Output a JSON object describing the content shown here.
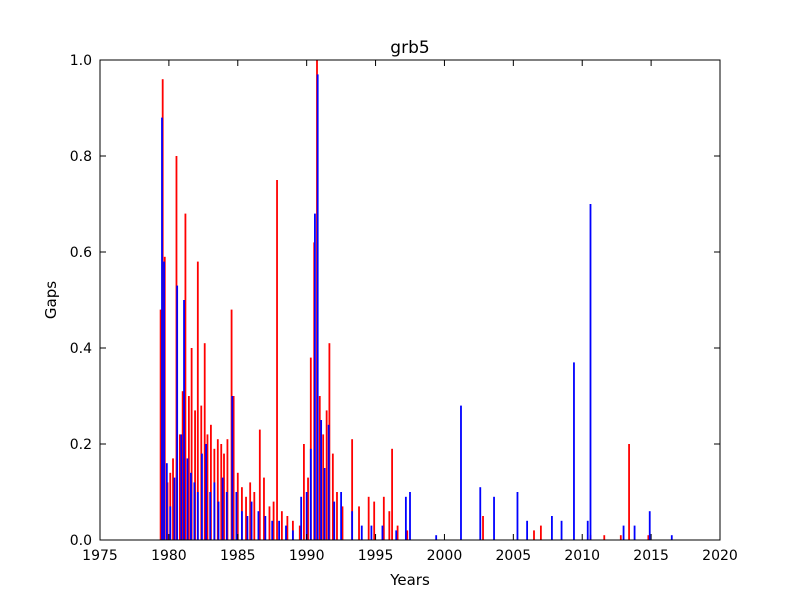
{
  "chart_data": {
    "type": "bar",
    "title": "grb5",
    "xlabel": "Years",
    "ylabel": "Gaps",
    "xlim": [
      1975,
      2020
    ],
    "ylim": [
      0,
      1.0
    ],
    "xticks": [
      1975,
      1980,
      1985,
      1990,
      1995,
      2000,
      2005,
      2010,
      2015,
      2020
    ],
    "xtick_labels": [
      "1975",
      "1980",
      "1985",
      "1990",
      "1995",
      "2000",
      "2005",
      "2010",
      "2015",
      "2020"
    ],
    "yticks": [
      0.0,
      0.2,
      0.4,
      0.6,
      0.8,
      1.0
    ],
    "ytick_labels": [
      "0.0",
      "0.2",
      "0.4",
      "0.6",
      "0.8",
      "1.0"
    ],
    "grid": false,
    "legend": "none",
    "series": [
      {
        "color": "#ff0000",
        "points": [
          [
            1979.4,
            0.48
          ],
          [
            1979.55,
            0.96
          ],
          [
            1979.7,
            0.59
          ],
          [
            1979.9,
            0.12
          ],
          [
            1980.1,
            0.14
          ],
          [
            1980.3,
            0.17
          ],
          [
            1980.55,
            0.8
          ],
          [
            1980.8,
            0.22
          ],
          [
            1981.0,
            0.31
          ],
          [
            1981.2,
            0.68
          ],
          [
            1981.45,
            0.3
          ],
          [
            1981.65,
            0.4
          ],
          [
            1981.9,
            0.27
          ],
          [
            1982.1,
            0.58
          ],
          [
            1982.35,
            0.28
          ],
          [
            1982.6,
            0.41
          ],
          [
            1982.8,
            0.22
          ],
          [
            1983.05,
            0.24
          ],
          [
            1983.3,
            0.19
          ],
          [
            1983.55,
            0.21
          ],
          [
            1983.8,
            0.2
          ],
          [
            1984.0,
            0.18
          ],
          [
            1984.25,
            0.21
          ],
          [
            1984.55,
            0.48
          ],
          [
            1984.7,
            0.3
          ],
          [
            1985.0,
            0.14
          ],
          [
            1985.3,
            0.11
          ],
          [
            1985.6,
            0.09
          ],
          [
            1985.9,
            0.12
          ],
          [
            1986.2,
            0.1
          ],
          [
            1986.6,
            0.23
          ],
          [
            1986.9,
            0.13
          ],
          [
            1987.3,
            0.07
          ],
          [
            1987.6,
            0.08
          ],
          [
            1987.85,
            0.75
          ],
          [
            1988.2,
            0.06
          ],
          [
            1988.6,
            0.05
          ],
          [
            1989.0,
            0.04
          ],
          [
            1989.5,
            0.03
          ],
          [
            1989.8,
            0.2
          ],
          [
            1990.1,
            0.13
          ],
          [
            1990.3,
            0.38
          ],
          [
            1990.55,
            0.62
          ],
          [
            1990.75,
            1.0
          ],
          [
            1990.95,
            0.3
          ],
          [
            1991.2,
            0.22
          ],
          [
            1991.45,
            0.27
          ],
          [
            1991.65,
            0.41
          ],
          [
            1991.9,
            0.18
          ],
          [
            1992.2,
            0.1
          ],
          [
            1992.6,
            0.07
          ],
          [
            1993.3,
            0.21
          ],
          [
            1993.8,
            0.07
          ],
          [
            1994.5,
            0.09
          ],
          [
            1994.9,
            0.08
          ],
          [
            1995.6,
            0.09
          ],
          [
            1996.0,
            0.06
          ],
          [
            1996.2,
            0.19
          ],
          [
            1996.6,
            0.03
          ],
          [
            1997.3,
            0.02
          ],
          [
            2002.8,
            0.05
          ],
          [
            2006.5,
            0.02
          ],
          [
            2007.0,
            0.03
          ],
          [
            2010.6,
            0.01
          ],
          [
            2011.6,
            0.01
          ],
          [
            2012.8,
            0.01
          ],
          [
            2013.4,
            0.2
          ],
          [
            2014.8,
            0.01
          ]
        ]
      },
      {
        "color": "#0000ff",
        "points": [
          [
            1979.5,
            0.88
          ],
          [
            1979.65,
            0.58
          ],
          [
            1979.85,
            0.16
          ],
          [
            1980.1,
            0.07
          ],
          [
            1980.4,
            0.13
          ],
          [
            1980.6,
            0.53
          ],
          [
            1980.9,
            0.22
          ],
          [
            1981.1,
            0.5
          ],
          [
            1981.35,
            0.17
          ],
          [
            1981.6,
            0.14
          ],
          [
            1981.85,
            0.12
          ],
          [
            1982.1,
            0.1
          ],
          [
            1982.4,
            0.18
          ],
          [
            1982.7,
            0.2
          ],
          [
            1983.0,
            0.1
          ],
          [
            1983.3,
            0.12
          ],
          [
            1983.6,
            0.08
          ],
          [
            1983.9,
            0.13
          ],
          [
            1984.2,
            0.1
          ],
          [
            1984.6,
            0.3
          ],
          [
            1984.9,
            0.1
          ],
          [
            1985.3,
            0.06
          ],
          [
            1985.7,
            0.05
          ],
          [
            1986.0,
            0.08
          ],
          [
            1986.5,
            0.06
          ],
          [
            1987.0,
            0.05
          ],
          [
            1987.5,
            0.04
          ],
          [
            1988.0,
            0.04
          ],
          [
            1988.5,
            0.03
          ],
          [
            1989.0,
            0.02
          ],
          [
            1989.6,
            0.09
          ],
          [
            1990.0,
            0.1
          ],
          [
            1990.3,
            0.19
          ],
          [
            1990.6,
            0.68
          ],
          [
            1990.8,
            0.97
          ],
          [
            1991.05,
            0.25
          ],
          [
            1991.3,
            0.15
          ],
          [
            1991.6,
            0.24
          ],
          [
            1992.0,
            0.08
          ],
          [
            1992.5,
            0.1
          ],
          [
            1993.3,
            0.06
          ],
          [
            1994.0,
            0.03
          ],
          [
            1994.7,
            0.03
          ],
          [
            1995.5,
            0.03
          ],
          [
            1996.5,
            0.02
          ],
          [
            1997.2,
            0.09
          ],
          [
            1997.5,
            0.1
          ],
          [
            1999.4,
            0.01
          ],
          [
            2001.2,
            0.28
          ],
          [
            2002.6,
            0.11
          ],
          [
            2003.6,
            0.09
          ],
          [
            2005.3,
            0.1
          ],
          [
            2006.0,
            0.04
          ],
          [
            2007.8,
            0.05
          ],
          [
            2008.5,
            0.04
          ],
          [
            2009.4,
            0.37
          ],
          [
            2010.6,
            0.7
          ],
          [
            2010.4,
            0.04
          ],
          [
            2013.0,
            0.03
          ],
          [
            2013.8,
            0.03
          ],
          [
            2014.9,
            0.06
          ],
          [
            2016.5,
            0.01
          ]
        ]
      }
    ]
  }
}
